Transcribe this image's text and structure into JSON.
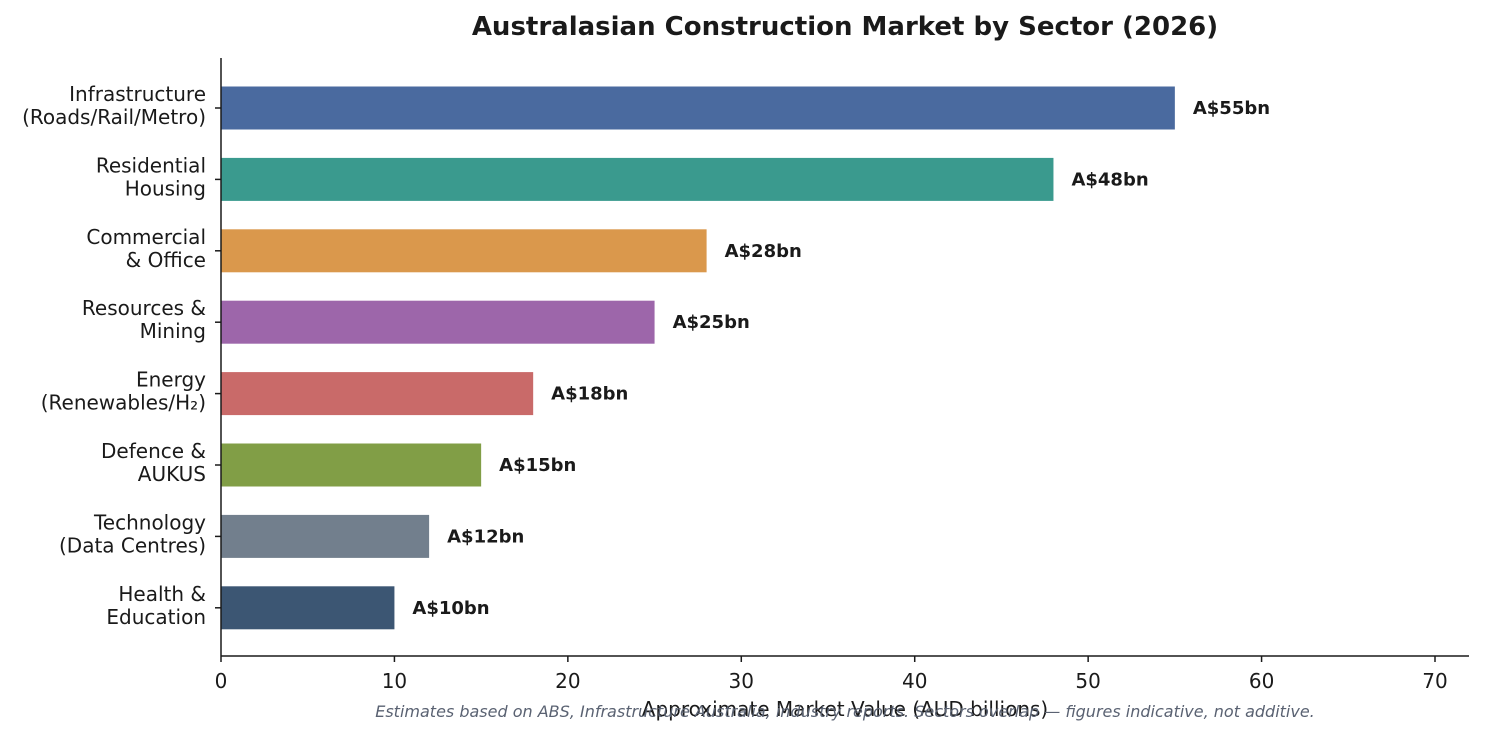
{
  "chart_data": {
    "type": "bar",
    "orientation": "horizontal",
    "title": "Australasian Construction Market by Sector (2026)",
    "xlabel": "Approximate Market Value (AUD billions)",
    "ylabel": "",
    "xlim": [
      0,
      72
    ],
    "xticks": [
      0,
      10,
      20,
      30,
      40,
      50,
      60,
      70
    ],
    "grid": false,
    "categories": [
      [
        "Infrastructure",
        "(Roads/Rail/Metro)"
      ],
      [
        "Residential",
        "Housing"
      ],
      [
        "Commercial",
        "& Office"
      ],
      [
        "Resources &",
        "Mining"
      ],
      [
        "Energy",
        "(Renewables/H₂)"
      ],
      [
        "Defence &",
        "AUKUS"
      ],
      [
        "Technology",
        "(Data Centres)"
      ],
      [
        "Health &",
        "Education"
      ]
    ],
    "values": [
      55,
      48,
      28,
      25,
      18,
      15,
      12,
      10
    ],
    "value_labels": [
      "A$55bn",
      "A$48bn",
      "A$28bn",
      "A$25bn",
      "A$18bn",
      "A$15bn",
      "A$12bn",
      "A$10bn"
    ],
    "colors": [
      "#4a6a9f",
      "#3a9a8e",
      "#da984c",
      "#9d66aa",
      "#c96a69",
      "#819e46",
      "#727f8d",
      "#3c5673"
    ],
    "footnote": "Estimates based on ABS, Infrastructure Australia, industry reports. Sectors overlap — figures indicative, not additive."
  }
}
